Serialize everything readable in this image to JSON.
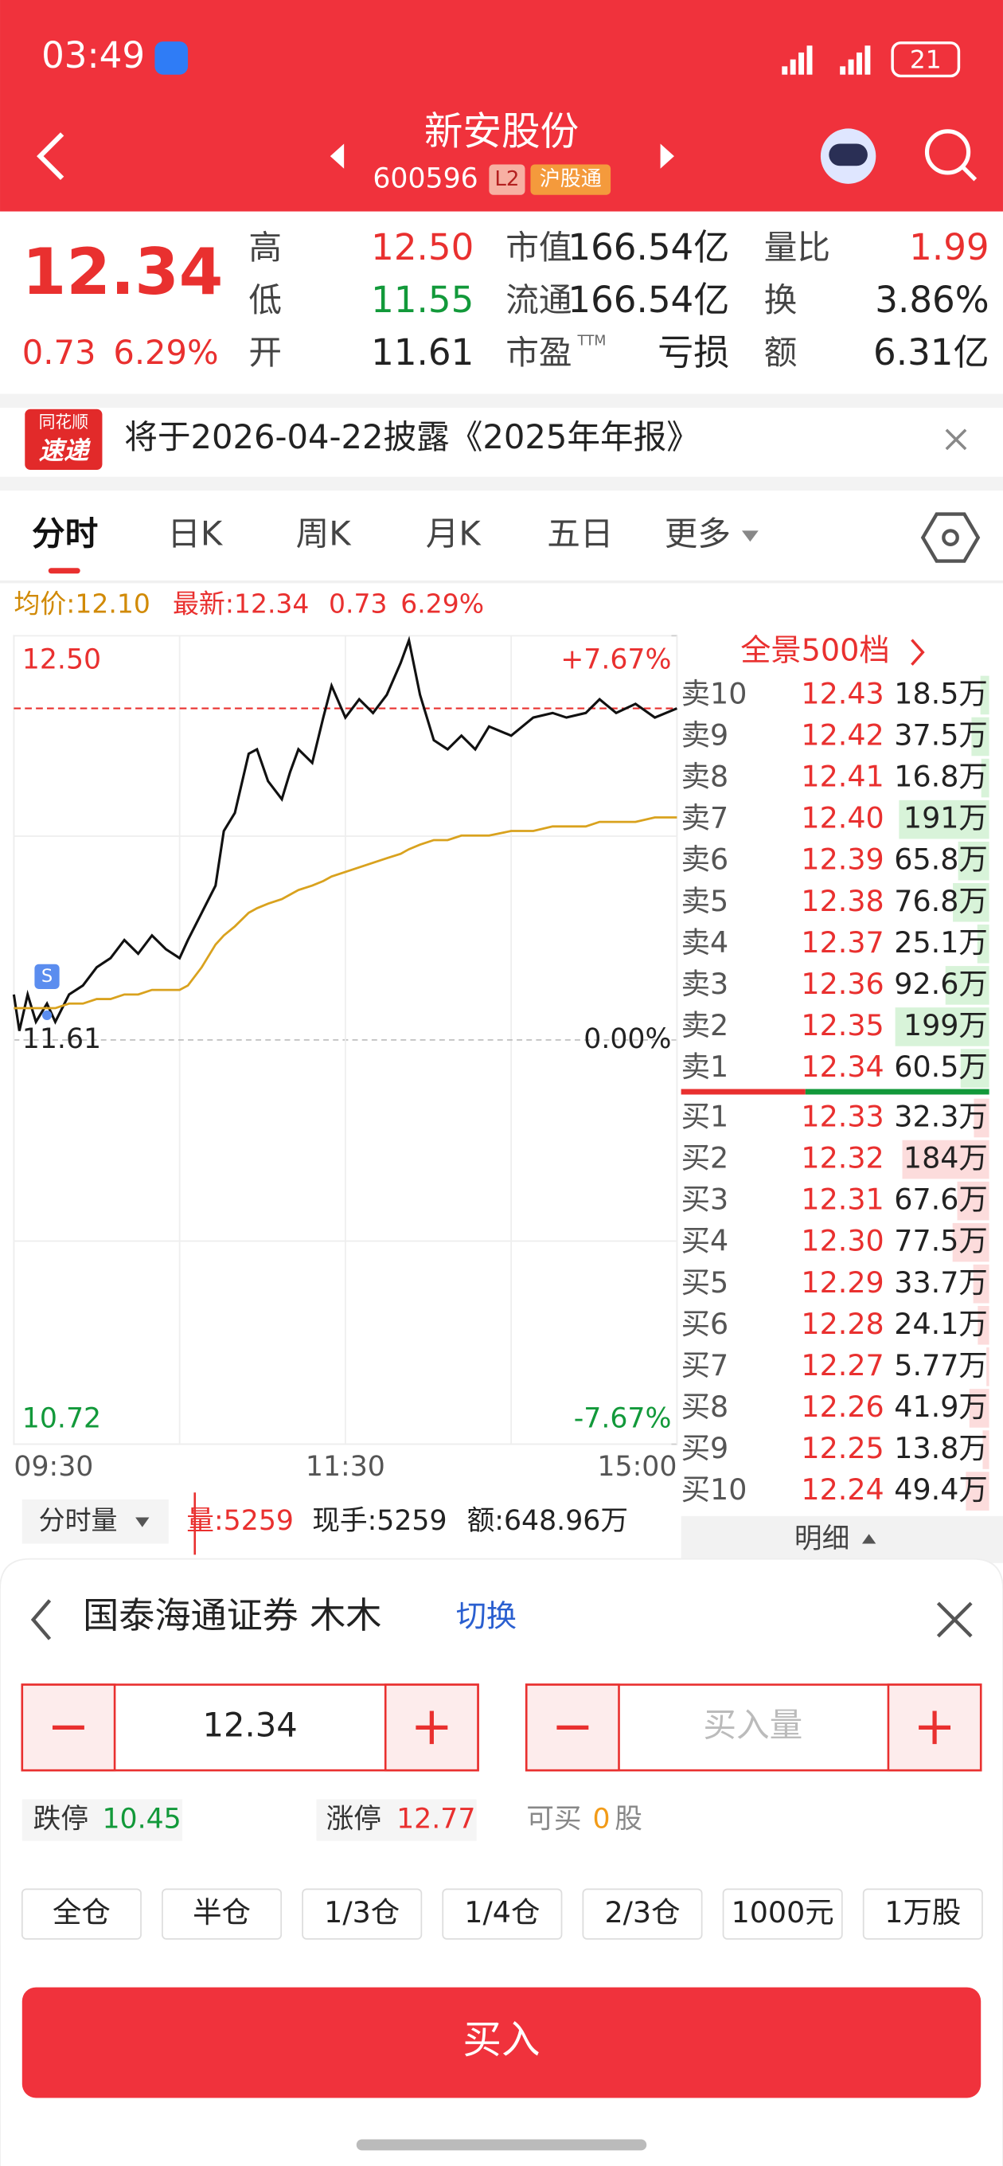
{
  "status_bar": {
    "time": "03:49",
    "battery": "21"
  },
  "header": {
    "title": "新安股份",
    "code": "600596",
    "badge_l2": "L2",
    "badge_market": "沪股通"
  },
  "quote": {
    "price": "12.34",
    "change": "0.73",
    "change_pct": "6.29%",
    "stats": [
      {
        "label": "高",
        "value": "12.50"
      },
      {
        "label": "低",
        "value": "11.55"
      },
      {
        "label": "开",
        "value": "11.61"
      },
      {
        "label": "市值",
        "value": "166.54亿"
      },
      {
        "label": "流通",
        "value": "166.54亿"
      },
      {
        "label": "市盈",
        "sup": "TTM",
        "value": "亏损"
      },
      {
        "label": "量比",
        "value": "1.99"
      },
      {
        "label": "换",
        "value": "3.86%"
      },
      {
        "label": "额",
        "value": "6.31亿"
      }
    ]
  },
  "notice": {
    "badge_top": "同花顺",
    "badge_bottom": "速递",
    "text": "将于2026-04-22披露《2025年年报》"
  },
  "tabs": [
    "分时",
    "日K",
    "周K",
    "月K",
    "五日",
    "更多"
  ],
  "chart_info": {
    "avg": "均价:12.10",
    "latest": "最新:12.34",
    "change": "0.73",
    "change_pct": "6.29%"
  },
  "chart": {
    "type": "line",
    "x": [
      0,
      2,
      5,
      8,
      12,
      15,
      20,
      25,
      30,
      35,
      40,
      45,
      50,
      55,
      60,
      63,
      68,
      73,
      76,
      80,
      85,
      88,
      92,
      97,
      100,
      103,
      108,
      112,
      115,
      120,
      125,
      130,
      135,
      140,
      143,
      147,
      152,
      157,
      162,
      167,
      172,
      180,
      188,
      195,
      200,
      207,
      212,
      218,
      225,
      232,
      240
    ],
    "series": [
      {
        "color": "#111111",
        "values": [
          11.71,
          11.63,
          11.71,
          11.65,
          11.69,
          11.65,
          11.71,
          11.73,
          11.77,
          11.79,
          11.83,
          11.8,
          11.84,
          11.81,
          11.79,
          11.83,
          11.89,
          11.95,
          12.07,
          12.11,
          12.24,
          12.25,
          12.18,
          12.14,
          12.2,
          12.25,
          12.22,
          12.32,
          12.39,
          12.32,
          12.36,
          12.33,
          12.37,
          12.44,
          12.49,
          12.37,
          12.27,
          12.25,
          12.28,
          12.25,
          12.3,
          12.28,
          12.32,
          12.33,
          12.32,
          12.33,
          12.36,
          12.33,
          12.35,
          12.32,
          12.34
        ]
      },
      {
        "color": "#d9a21e",
        "values": [
          11.68,
          11.68,
          11.68,
          11.68,
          11.68,
          11.68,
          11.69,
          11.69,
          11.7,
          11.7,
          11.71,
          11.71,
          11.72,
          11.72,
          11.72,
          11.73,
          11.77,
          11.82,
          11.84,
          11.86,
          11.89,
          11.9,
          11.91,
          11.92,
          11.93,
          11.94,
          11.95,
          11.96,
          11.97,
          11.98,
          11.99,
          12.0,
          12.01,
          12.02,
          12.03,
          12.04,
          12.05,
          12.05,
          12.06,
          12.06,
          12.06,
          12.07,
          12.07,
          12.08,
          12.08,
          12.08,
          12.09,
          12.09,
          12.09,
          12.1,
          12.1
        ]
      }
    ],
    "xlim": [
      0,
      240
    ],
    "xticks": [
      {
        "value": 0,
        "label": "09:30"
      },
      {
        "value": 120,
        "label": "11:30"
      },
      {
        "value": 240,
        "label": "15:00"
      }
    ],
    "ylim": [
      10.72,
      12.5
    ],
    "yticks": [
      {
        "value": 12.5,
        "label": "12.50"
      },
      11.61,
      10.72
    ],
    "y2lim": [
      -7.67,
      7.67
    ],
    "y2ticks": [
      {
        "value": 7.67,
        "label": "+7.67%"
      },
      {
        "value": 0,
        "label": "0.00%"
      },
      {
        "value": -7.67,
        "label": "-7.67%"
      }
    ],
    "ref_line": 12.34,
    "annotation": "S"
  },
  "volume_bar": {
    "selector": "分时量",
    "volume": "量:5259",
    "hand": "现手:5259",
    "amount": "额:648.96万"
  },
  "order_book": {
    "header": "全景500档",
    "detail": "明细",
    "asks": [
      {
        "level": "卖10",
        "price": "12.43",
        "volume": 18.5,
        "volume_label": "18.5万"
      },
      {
        "level": "卖9",
        "price": "12.42",
        "volume": 37.5,
        "volume_label": "37.5万"
      },
      {
        "level": "卖8",
        "price": "12.41",
        "volume": 16.8,
        "volume_label": "16.8万"
      },
      {
        "level": "卖7",
        "price": "12.40",
        "volume": 191,
        "volume_label": "191万"
      },
      {
        "level": "卖6",
        "price": "12.39",
        "volume": 65.8,
        "volume_label": "65.8万"
      },
      {
        "level": "卖5",
        "price": "12.38",
        "volume": 76.8,
        "volume_label": "76.8万"
      },
      {
        "level": "卖4",
        "price": "12.37",
        "volume": 25.1,
        "volume_label": "25.1万"
      },
      {
        "level": "卖3",
        "price": "12.36",
        "volume": 92.6,
        "volume_label": "92.6万"
      },
      {
        "level": "卖2",
        "price": "12.35",
        "volume": 199,
        "volume_label": "199万"
      },
      {
        "level": "卖1",
        "price": "12.34",
        "volume": 60.5,
        "volume_label": "60.5万"
      }
    ],
    "bids": [
      {
        "level": "买1",
        "price": "12.33",
        "volume": 32.3,
        "volume_label": "32.3万"
      },
      {
        "level": "买2",
        "price": "12.32",
        "volume": 184,
        "volume_label": "184万"
      },
      {
        "level": "买3",
        "price": "12.31",
        "volume": 67.6,
        "volume_label": "67.6万"
      },
      {
        "level": "买4",
        "price": "12.30",
        "volume": 77.5,
        "volume_label": "77.5万"
      },
      {
        "level": "买5",
        "price": "12.29",
        "volume": 33.7,
        "volume_label": "33.7万"
      },
      {
        "level": "买6",
        "price": "12.28",
        "volume": 24.1,
        "volume_label": "24.1万"
      },
      {
        "level": "买7",
        "price": "12.27",
        "volume": 5.77,
        "volume_label": "5.77万"
      },
      {
        "level": "买8",
        "price": "12.26",
        "volume": 41.9,
        "volume_label": "41.9万"
      },
      {
        "level": "买9",
        "price": "12.25",
        "volume": 13.8,
        "volume_label": "13.8万"
      },
      {
        "level": "买10",
        "price": "12.24",
        "volume": 49.4,
        "volume_label": "49.4万"
      }
    ]
  },
  "trade_panel": {
    "broker": "国泰海通证券 木木",
    "switch": "切换",
    "price_input": "12.34",
    "qty_placeholder": "买入量",
    "limit_down_label": "跌停",
    "limit_down": "10.45",
    "limit_up_label": "涨停",
    "limit_up": "12.77",
    "can_buy_label": "可买",
    "can_buy": "0",
    "can_buy_unit": "股",
    "quick": [
      "全仓",
      "半仓",
      "1/3仓",
      "1/4仓",
      "2/3仓",
      "1000元",
      "1万股"
    ],
    "buy_button": "买入"
  }
}
